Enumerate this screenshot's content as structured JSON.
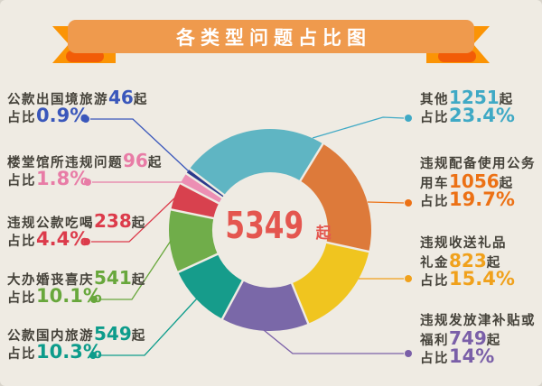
{
  "title": "各类型问题占比图",
  "background_color": "#efebe3",
  "text_color": "#45423a",
  "ribbon": {
    "main_color": "#ef9a4d",
    "tail_color": "#fb9405",
    "fold_color": "#f25c07",
    "text_color": "#ffffff"
  },
  "center_total": {
    "value": "5349",
    "unit": "起",
    "color": "#e4564f"
  },
  "chart_data": {
    "type": "pie",
    "subtype": "donut",
    "title": "各类型问题占比图",
    "total": 5349,
    "total_unit": "起",
    "percent_prefix": "占比",
    "count_suffix": "起",
    "start_angle_deg": -56,
    "inner_radius_ratio": 0.57,
    "legend_position": "sides-callouts",
    "slices": [
      {
        "name": "公款出国境旅游",
        "count": 46,
        "percent": 0.9,
        "percent_label": "0.9%",
        "color": "#2b3a8c",
        "accent": "#3a57bb"
      },
      {
        "name": "其他",
        "count": 1251,
        "percent": 23.4,
        "percent_label": "23.4%",
        "color": "#5fb5c3",
        "accent": "#3fa9c5"
      },
      {
        "name": "违规配备使用公务用车",
        "count": 1056,
        "percent": 19.7,
        "percent_label": "19.7%",
        "color": "#dd7a3a",
        "accent": "#ec7115"
      },
      {
        "name": "违规收送礼品礼金",
        "count": 823,
        "percent": 15.4,
        "percent_label": "15.4%",
        "color": "#f0c51f",
        "accent": "#f0a11c"
      },
      {
        "name": "违规发放津补贴或福利",
        "count": 749,
        "percent": 14,
        "percent_label": "14%",
        "color": "#7a68a8",
        "accent": "#7a5fa8"
      },
      {
        "name": "公款国内旅游",
        "count": 549,
        "percent": 10.3,
        "percent_label": "10.3%",
        "color": "#169c8b",
        "accent": "#0d9c8b"
      },
      {
        "name": "大办婚丧喜庆",
        "count": 541,
        "percent": 10.1,
        "percent_label": "10.1%",
        "color": "#70ad4a",
        "accent": "#68a73c"
      },
      {
        "name": "违规公款吃喝",
        "count": 238,
        "percent": 4.4,
        "percent_label": "4.4%",
        "color": "#d8414e",
        "accent": "#dc3b4b"
      },
      {
        "name": "楼堂馆所违规问题",
        "count": 96,
        "percent": 1.8,
        "percent_label": "1.8%",
        "color": "#ec8fb4",
        "accent": "#e87ca6"
      }
    ]
  },
  "labels": {
    "left": [
      {
        "slice": 0,
        "lines": [
          "公款出国境旅游|46|起",
          "占比|0.9%"
        ]
      },
      {
        "slice": 8,
        "lines": [
          "楼堂馆所违规问题|96|起",
          "占比|1.8%"
        ]
      },
      {
        "slice": 7,
        "lines": [
          "违规公款吃喝|238|起",
          "占比|4.4%"
        ]
      },
      {
        "slice": 6,
        "lines": [
          "大办婚丧喜庆|541|起",
          "占比|10.1%"
        ]
      },
      {
        "slice": 5,
        "lines": [
          "公款国内旅游|549|起",
          "占比|10.3%"
        ]
      }
    ],
    "right": [
      {
        "slice": 1,
        "lines": [
          "其他|1251|起",
          "占比|23.4%"
        ]
      },
      {
        "slice": 2,
        "lines": [
          "违规配备使用公务",
          "用车|1056|起",
          "占比|19.7%"
        ]
      },
      {
        "slice": 3,
        "lines": [
          "违规收送礼品",
          "礼金|823|起",
          "占比|15.4%"
        ]
      },
      {
        "slice": 4,
        "lines": [
          "违规发放津补贴或",
          "福利|749|起",
          "占比|14%"
        ]
      }
    ]
  }
}
